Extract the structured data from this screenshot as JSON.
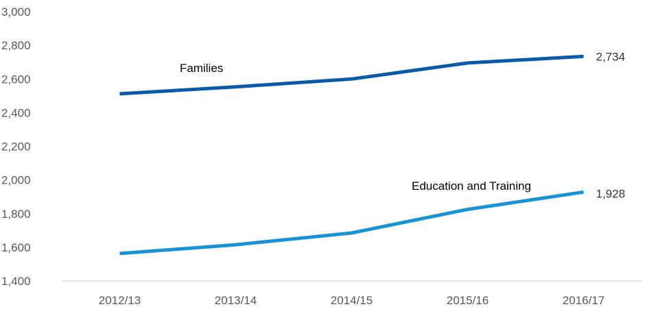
{
  "chart_data": {
    "type": "line",
    "title": "",
    "xlabel": "",
    "ylabel": "",
    "categories": [
      "2012/13",
      "2013/14",
      "2014/15",
      "2015/16",
      "2016/17"
    ],
    "y_ticks": [
      "1,400",
      "1,600",
      "1,800",
      "2,000",
      "2,200",
      "2,400",
      "2,600",
      "2,800",
      "3,000"
    ],
    "ylim": [
      1400,
      3000
    ],
    "grid": false,
    "series": [
      {
        "name": "Families",
        "values": [
          2512,
          2553,
          2600,
          2695,
          2734
        ],
        "color": "#0a5aa8",
        "end_label": "2,734"
      },
      {
        "name": "Education and Training",
        "values": [
          1563,
          1615,
          1685,
          1825,
          1928
        ],
        "color": "#1a93d6",
        "end_label": "1,928"
      }
    ]
  }
}
